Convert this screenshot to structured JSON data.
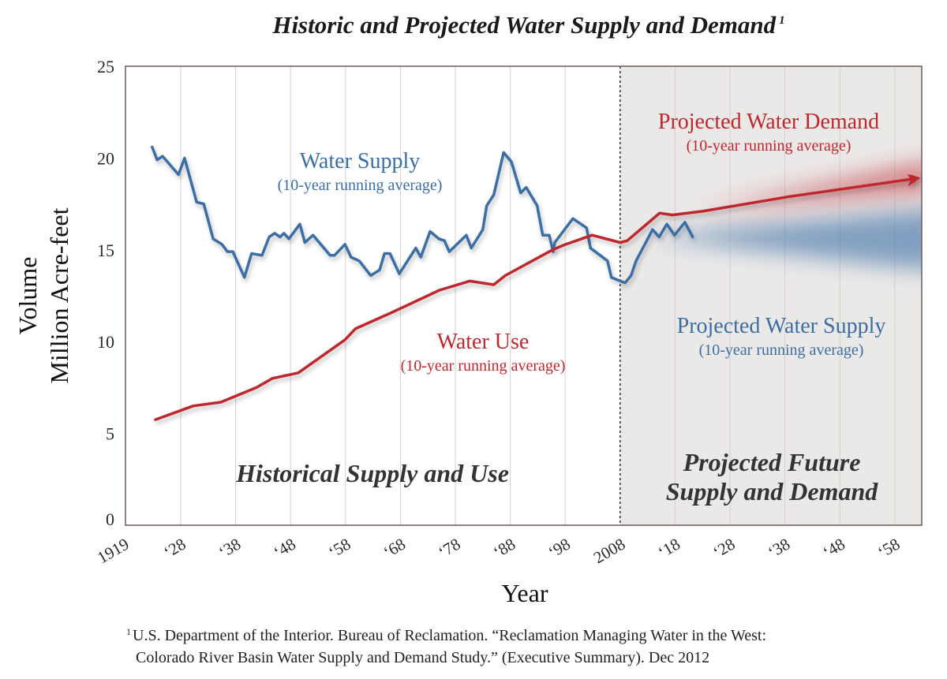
{
  "chart_data": {
    "type": "line",
    "title": "Historic and Projected Water Supply and Demand",
    "title_footnote_marker": "1",
    "xlabel": "Year",
    "ylabel_line1": "Volume",
    "ylabel_line2": "Million Acre-feet",
    "xlim": [
      1918,
      2065
    ],
    "ylim": [
      0,
      25
    ],
    "yticks": [
      0,
      5,
      10,
      15,
      20,
      25
    ],
    "xticks": [
      {
        "year": 1919,
        "label": "1919"
      },
      {
        "year": 1928,
        "label": "‘28"
      },
      {
        "year": 1938,
        "label": "‘38"
      },
      {
        "year": 1948,
        "label": "‘48"
      },
      {
        "year": 1958,
        "label": "‘58"
      },
      {
        "year": 1968,
        "label": "‘68"
      },
      {
        "year": 1978,
        "label": "‘78"
      },
      {
        "year": 1988,
        "label": "‘88"
      },
      {
        "year": 1998,
        "label": "‘98"
      },
      {
        "year": 2008,
        "label": "2008"
      },
      {
        "year": 2018,
        "label": "‘18"
      },
      {
        "year": 2028,
        "label": "‘28"
      },
      {
        "year": 2038,
        "label": "‘38"
      },
      {
        "year": 2048,
        "label": "‘48"
      },
      {
        "year": 2058,
        "label": "‘58"
      }
    ],
    "grid": "vertical",
    "projection_start_year": 2008,
    "colors": {
      "supply": "#3a6ea5",
      "demand": "#c0272d",
      "projection_bg": "#ebe9e8",
      "axis": "#6b5a57",
      "grid": "#d4d0cf"
    },
    "series": [
      {
        "name": "Water Supply",
        "subtitle": "(10-year running average)",
        "color": "#3a6ea5",
        "points": [
          [
            1922.8,
            20.6
          ],
          [
            1923.7,
            19.9
          ],
          [
            1924.7,
            20.1
          ],
          [
            1927.6,
            19.1
          ],
          [
            1928.7,
            20.0
          ],
          [
            1930.9,
            17.6
          ],
          [
            1932.2,
            17.5
          ],
          [
            1933.9,
            15.6
          ],
          [
            1935.5,
            15.3
          ],
          [
            1936.5,
            14.9
          ],
          [
            1937.5,
            14.9
          ],
          [
            1939.6,
            13.5
          ],
          [
            1940.9,
            14.8
          ],
          [
            1942.8,
            14.7
          ],
          [
            1944.1,
            15.7
          ],
          [
            1945.1,
            15.9
          ],
          [
            1946.1,
            15.7
          ],
          [
            1946.8,
            15.9
          ],
          [
            1947.7,
            15.6
          ],
          [
            1949.7,
            16.4
          ],
          [
            1950.6,
            15.4
          ],
          [
            1952.1,
            15.8
          ],
          [
            1955.2,
            14.7
          ],
          [
            1956.0,
            14.7
          ],
          [
            1957.9,
            15.3
          ],
          [
            1959.0,
            14.6
          ],
          [
            1960.5,
            14.4
          ],
          [
            1962.6,
            13.6
          ],
          [
            1964.2,
            13.9
          ],
          [
            1965.1,
            14.8
          ],
          [
            1966.1,
            14.8
          ],
          [
            1967.8,
            13.7
          ],
          [
            1970.8,
            15.1
          ],
          [
            1971.7,
            14.6
          ],
          [
            1973.4,
            16.0
          ],
          [
            1975.0,
            15.6
          ],
          [
            1976.0,
            15.5
          ],
          [
            1976.9,
            14.9
          ],
          [
            1980.0,
            15.8
          ],
          [
            1980.9,
            15.1
          ],
          [
            1983.0,
            16.1
          ],
          [
            1983.7,
            17.4
          ],
          [
            1985.0,
            18.0
          ],
          [
            1986.8,
            20.3
          ],
          [
            1988.2,
            19.8
          ],
          [
            1989.9,
            18.1
          ],
          [
            1990.9,
            18.4
          ],
          [
            1992.9,
            17.4
          ],
          [
            1993.9,
            15.8
          ],
          [
            1995.1,
            15.8
          ],
          [
            1995.8,
            14.9
          ],
          [
            1996.1,
            15.4
          ],
          [
            1999.4,
            16.7
          ],
          [
            2001.9,
            16.2
          ],
          [
            2002.6,
            15.1
          ],
          [
            2005.7,
            14.4
          ],
          [
            2006.4,
            13.5
          ],
          [
            2007.2,
            13.4
          ],
          [
            2008.9,
            13.2
          ],
          [
            2010.0,
            13.6
          ],
          [
            2010.9,
            14.4
          ],
          [
            2013.9,
            16.1
          ],
          [
            2015.1,
            15.7
          ],
          [
            2016.5,
            16.4
          ],
          [
            2017.9,
            15.8
          ],
          [
            2019.8,
            16.5
          ],
          [
            2021.2,
            15.7
          ]
        ]
      },
      {
        "name": "Water Use",
        "subtitle": "(10-year running average)",
        "color": "#c0272d",
        "points": [
          [
            1923.4,
            5.75
          ],
          [
            1930.3,
            6.5
          ],
          [
            1935.3,
            6.7
          ],
          [
            1941.8,
            7.5
          ],
          [
            1944.7,
            8.0
          ],
          [
            1949.4,
            8.3
          ],
          [
            1957.9,
            10.1
          ],
          [
            1959.8,
            10.7
          ],
          [
            1966.5,
            11.6
          ],
          [
            1975.1,
            12.8
          ],
          [
            1980.6,
            13.3
          ],
          [
            1985.0,
            13.1
          ],
          [
            1987.1,
            13.6
          ],
          [
            1995.7,
            15.0
          ],
          [
            1998.1,
            15.3
          ],
          [
            2002.9,
            15.8
          ],
          [
            2008.0,
            15.4
          ]
        ]
      },
      {
        "name": "Projected Water Demand",
        "subtitle": "(10-year running average)",
        "color": "#c0272d",
        "points": [
          [
            2008.0,
            15.4
          ],
          [
            2009.3,
            15.5
          ],
          [
            2015.2,
            17.0
          ],
          [
            2017.5,
            16.9
          ],
          [
            2023.0,
            17.1
          ],
          [
            2038.8,
            17.9
          ],
          [
            2062.2,
            18.9
          ]
        ]
      },
      {
        "name": "Projected Water Supply",
        "subtitle": "(10-year running average)",
        "color": "#3a6ea5",
        "points": [
          [
            2021.2,
            15.7
          ],
          [
            2062.2,
            15.7
          ]
        ]
      }
    ],
    "annotations": {
      "historical_region": "Historical Supply and Use",
      "projected_region_line1": "Projected Future",
      "projected_region_line2": "Supply and Demand"
    },
    "footnote": {
      "marker": "1",
      "line1": "U.S. Department of the Interior. Bureau of Reclamation. “Reclamation Managing Water in the West:",
      "line2": "Colorado River Basin Water Supply and Demand Study.” (Executive Summary). Dec 2012"
    }
  }
}
